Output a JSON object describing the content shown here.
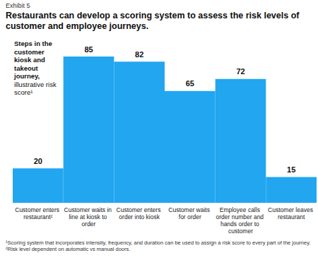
{
  "chart_data": {
    "type": "bar",
    "exhibit": "Exhibit 5",
    "title": "Restaurants can develop a scoring system to assess the risk levels of customer and employee journeys.",
    "subtitle": [
      "Steps in the customer kiosk and takeout journey,",
      "illustrative risk score¹"
    ],
    "categories": [
      "Customer enters restaurant²",
      "Customer waits in line at kiosk to order",
      "Customer enters order into kiosk",
      "Customer waits for order",
      "Employee calls order number and hands order to customer",
      "Customer leaves restaurant"
    ],
    "values": [
      20,
      85,
      82,
      65,
      72,
      15
    ],
    "color": "#22a6f0",
    "ylim": [
      0,
      85
    ],
    "data_labels": true,
    "tick_labels": false,
    "grid": false,
    "footnotes": [
      "¹Scoring system that incorporates intensity, frequency, and duration can be used to assign a risk score to every part of the journey.",
      "²Risk level dependent on automatic vs manual doors."
    ]
  }
}
